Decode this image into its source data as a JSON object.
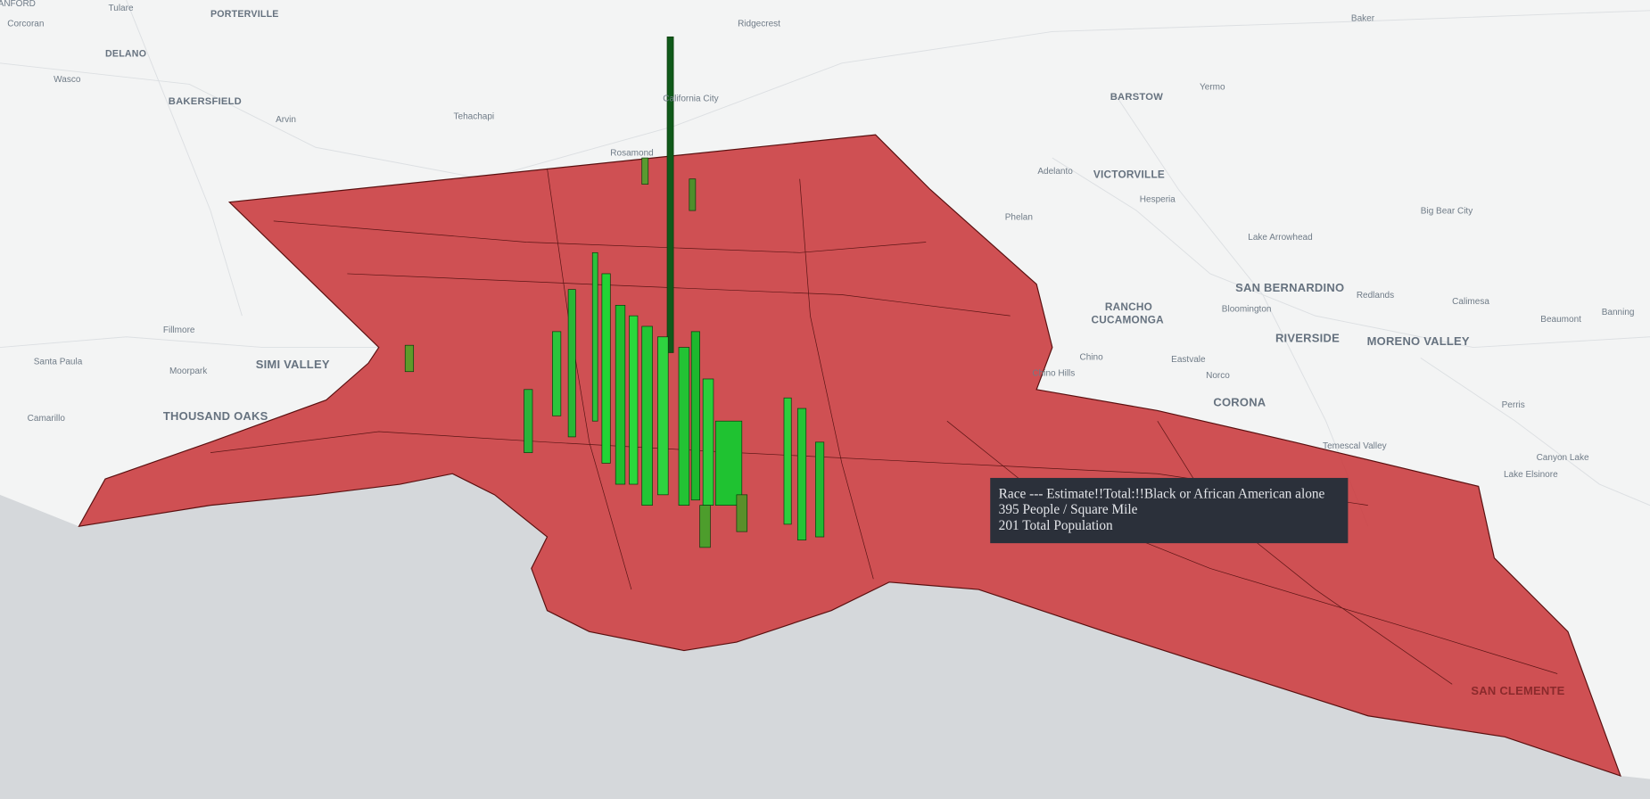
{
  "map": {
    "labels": [
      "ANFORD",
      "Tulare",
      "PORTERVILLE",
      "Corcoran",
      "DELANO",
      "Wasco",
      "BAKERSFIELD",
      "Arvin",
      "Tehachapi",
      "Ridgecrest",
      "California City",
      "Rosamond",
      "Baker",
      "BARSTOW",
      "Yermo",
      "Adelanto",
      "VICTORVILLE",
      "Hesperia",
      "Phelan",
      "Big Bear City",
      "Lake Arrowhead",
      "SAN BERNARDINO",
      "Redlands",
      "Calimesa",
      "Bloomington",
      "RANCHO",
      "CUCAMONGA",
      "RIVERSIDE",
      "MORENO VALLEY",
      "Beaumont",
      "Banning",
      "Chino",
      "Chino Hills",
      "Eastvale",
      "Norco",
      "CORONA",
      "Perris",
      "Temescal Valley",
      "Canyon Lake",
      "Lake Elsinore",
      "Fillmore",
      "Santa Paula",
      "Moorpark",
      "SIMI VALLEY",
      "Camarillo",
      "THOUSAND OAKS",
      "SAN CLEMENTE"
    ],
    "tooltip": {
      "lines": [
        "Race --- Estimate!!Total:!!Black or African American alone",
        "395 People / Square Mile",
        "201 Total Population"
      ]
    }
  }
}
